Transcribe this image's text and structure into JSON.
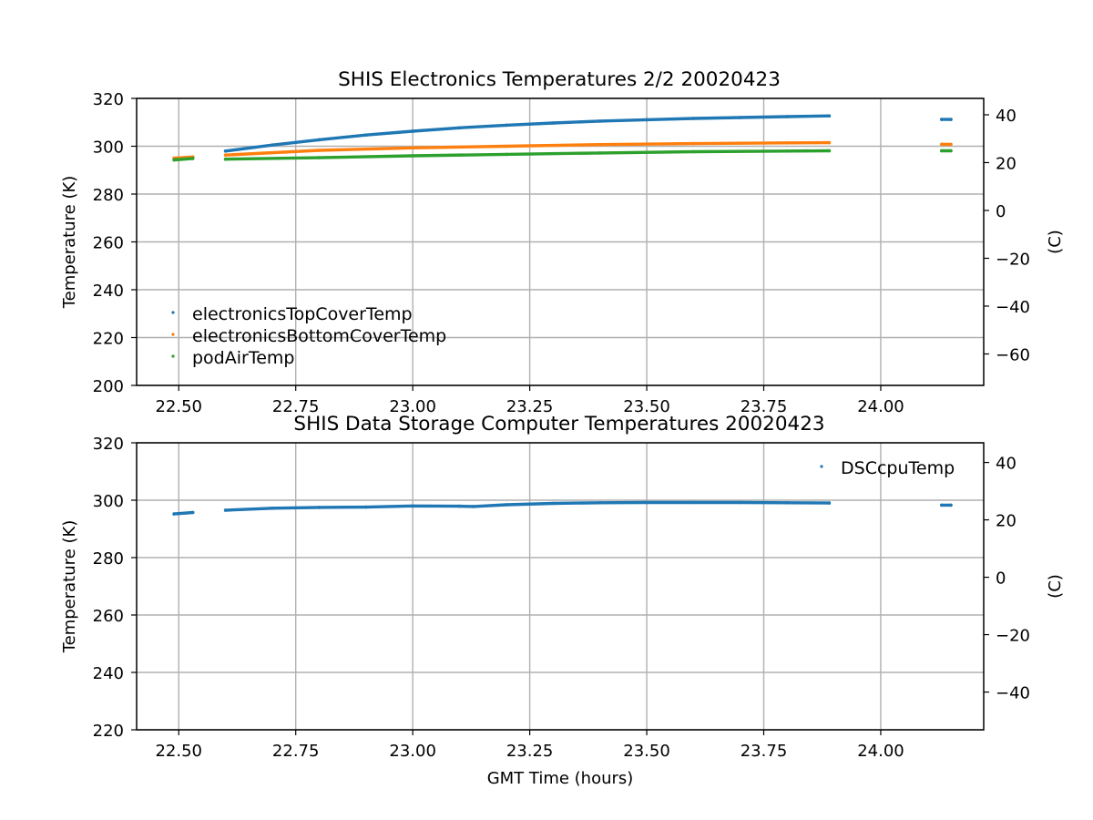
{
  "chart_data": [
    {
      "type": "scatter",
      "title": "SHIS Electronics Temperatures 2/2 20020423",
      "xlabel": "",
      "ylabel": "Temperature (K)",
      "ylabel_right": "(C)",
      "xlim": [
        22.41,
        24.22
      ],
      "ylim": [
        200,
        320
      ],
      "ylim_right": [
        -73.15,
        46.85
      ],
      "xticks": [
        "22.50",
        "22.75",
        "23.00",
        "23.25",
        "23.50",
        "23.75",
        "24.00"
      ],
      "yticks": [
        "200",
        "220",
        "240",
        "260",
        "280",
        "300",
        "320"
      ],
      "yticks_right": [
        "−60",
        "−40",
        "−20",
        "0",
        "20",
        "40"
      ],
      "grid": true,
      "legend_position": "lower-left",
      "series": [
        {
          "name": "electronicsTopCoverTemp",
          "color": "#1f77b4",
          "segments": [
            {
              "x": [
                22.6,
                22.7,
                22.8,
                22.9,
                23.0,
                23.1,
                23.2,
                23.3,
                23.4,
                23.5,
                23.6,
                23.7,
                23.8,
                23.89
              ],
              "y": [
                298.0,
                300.5,
                302.7,
                304.7,
                306.3,
                307.7,
                308.8,
                309.7,
                310.5,
                311.1,
                311.6,
                312.0,
                312.4,
                312.7
              ]
            },
            {
              "x": [
                24.13,
                24.15
              ],
              "y": [
                311.2,
                311.2
              ]
            }
          ]
        },
        {
          "name": "electronicsBottomCoverTemp",
          "color": "#ff7f0e",
          "segments": [
            {
              "x": [
                22.49,
                22.53
              ],
              "y": [
                295.0,
                295.5
              ]
            },
            {
              "x": [
                22.6,
                22.8,
                23.0,
                23.2,
                23.4,
                23.6,
                23.8,
                23.89
              ],
              "y": [
                296.3,
                298.3,
                299.3,
                300.0,
                300.7,
                301.1,
                301.4,
                301.5
              ]
            },
            {
              "x": [
                24.13,
                24.15
              ],
              "y": [
                300.8,
                300.8
              ]
            }
          ]
        },
        {
          "name": "podAirTemp",
          "color": "#2ca02c",
          "segments": [
            {
              "x": [
                22.49,
                22.53
              ],
              "y": [
                294.3,
                294.9
              ]
            },
            {
              "x": [
                22.6,
                22.8,
                23.0,
                23.2,
                23.4,
                23.6,
                23.8,
                23.89
              ],
              "y": [
                294.6,
                295.2,
                296.0,
                296.6,
                297.2,
                297.7,
                298.0,
                298.1
              ]
            },
            {
              "x": [
                24.13,
                24.15
              ],
              "y": [
                298.1,
                298.1
              ]
            }
          ]
        }
      ]
    },
    {
      "type": "scatter",
      "title": "SHIS Data Storage Computer Temperatures 20020423",
      "xlabel": "GMT Time (hours)",
      "ylabel": "Temperature (K)",
      "ylabel_right": "(C)",
      "xlim": [
        22.41,
        24.22
      ],
      "ylim": [
        220,
        320
      ],
      "ylim_right": [
        -53.15,
        46.85
      ],
      "xticks": [
        "22.50",
        "22.75",
        "23.00",
        "23.25",
        "23.50",
        "23.75",
        "24.00"
      ],
      "yticks": [
        "220",
        "240",
        "260",
        "280",
        "300",
        "320"
      ],
      "yticks_right": [
        "−40",
        "−20",
        "0",
        "20",
        "40"
      ],
      "grid": true,
      "legend_position": "upper-right",
      "series": [
        {
          "name": "DSCcpuTemp",
          "color": "#1f77b4",
          "segments": [
            {
              "x": [
                22.49,
                22.53
              ],
              "y": [
                295.2,
                295.7
              ]
            },
            {
              "x": [
                22.6,
                22.7,
                22.8,
                22.9,
                23.0,
                23.1,
                23.13,
                23.2,
                23.3,
                23.4,
                23.5,
                23.6,
                23.7,
                23.8,
                23.89
              ],
              "y": [
                296.5,
                297.2,
                297.5,
                297.6,
                298.0,
                297.9,
                297.8,
                298.4,
                298.9,
                299.1,
                299.2,
                299.2,
                299.2,
                299.1,
                299.0
              ]
            },
            {
              "x": [
                24.13,
                24.15
              ],
              "y": [
                298.3,
                298.3
              ]
            }
          ]
        }
      ]
    }
  ]
}
